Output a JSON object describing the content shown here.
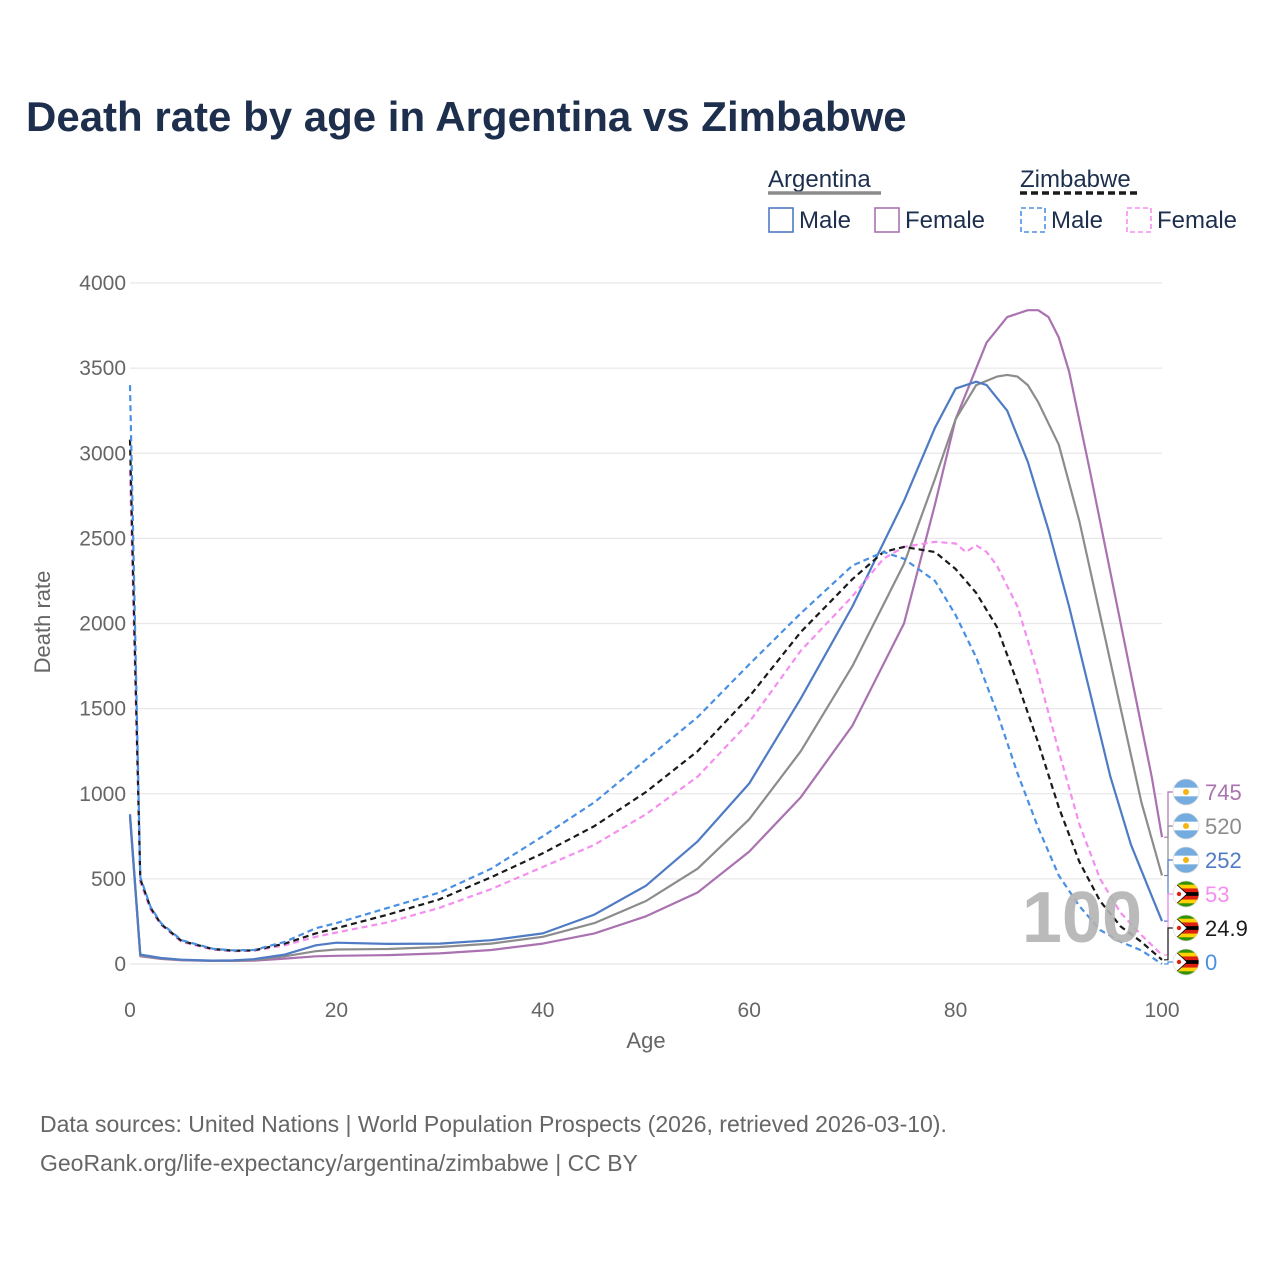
{
  "title": "Death rate by age in Argentina vs Zimbabwe",
  "legend": {
    "groups": [
      {
        "name": "Argentina",
        "entries": [
          {
            "label": "Male",
            "color": "#4f7bc4",
            "dash": false
          },
          {
            "label": "Female",
            "color": "#aa72b0",
            "dash": false
          }
        ],
        "line_color": "#8c8c8c",
        "dash": false
      },
      {
        "name": "Zimbabwe",
        "entries": [
          {
            "label": "Male",
            "color": "#4a90e2",
            "dash": true
          },
          {
            "label": "Female",
            "color": "#f48ff0",
            "dash": true
          }
        ],
        "line_color": "#1a1a1a",
        "dash": true
      }
    ]
  },
  "current_age_label": "100",
  "source_lines": [
    "Data sources: United Nations | World Population Prospects (2026, retrieved 2026-03-10).",
    "GeoRank.org/life-expectancy/argentina/zimbabwe | CC BY"
  ],
  "chart_data": {
    "type": "line",
    "xlabel": "Age",
    "ylabel": "Death rate",
    "xlim": [
      0,
      100
    ],
    "ylim": [
      0,
      4000
    ],
    "x_ticks": [
      0,
      20,
      40,
      60,
      80,
      100
    ],
    "y_ticks": [
      0,
      500,
      1000,
      1500,
      2000,
      2500,
      3000,
      3500,
      4000
    ],
    "grid": true,
    "series": [
      {
        "name": "Argentina Female",
        "color": "#aa72b0",
        "dash": false,
        "end_label": "745",
        "flag": "argentina",
        "points": [
          [
            0,
            860
          ],
          [
            1,
            45
          ],
          [
            3,
            30
          ],
          [
            5,
            22
          ],
          [
            8,
            18
          ],
          [
            10,
            18
          ],
          [
            12,
            20
          ],
          [
            15,
            32
          ],
          [
            18,
            45
          ],
          [
            20,
            48
          ],
          [
            25,
            52
          ],
          [
            30,
            62
          ],
          [
            35,
            82
          ],
          [
            40,
            120
          ],
          [
            45,
            180
          ],
          [
            50,
            280
          ],
          [
            55,
            420
          ],
          [
            60,
            660
          ],
          [
            65,
            980
          ],
          [
            70,
            1400
          ],
          [
            75,
            2000
          ],
          [
            78,
            2700
          ],
          [
            80,
            3200
          ],
          [
            83,
            3650
          ],
          [
            85,
            3800
          ],
          [
            87,
            3840
          ],
          [
            88,
            3840
          ],
          [
            89,
            3800
          ],
          [
            90,
            3680
          ],
          [
            91,
            3480
          ],
          [
            93,
            2900
          ],
          [
            95,
            2300
          ],
          [
            97,
            1700
          ],
          [
            99,
            1100
          ],
          [
            100,
            745
          ]
        ]
      },
      {
        "name": "Argentina total",
        "color": "#8c8c8c",
        "dash": false,
        "end_label": "520",
        "flag": "argentina",
        "points": [
          [
            0,
            870
          ],
          [
            1,
            50
          ],
          [
            3,
            32
          ],
          [
            5,
            24
          ],
          [
            8,
            19
          ],
          [
            10,
            20
          ],
          [
            12,
            24
          ],
          [
            15,
            45
          ],
          [
            18,
            75
          ],
          [
            20,
            85
          ],
          [
            25,
            88
          ],
          [
            30,
            100
          ],
          [
            35,
            120
          ],
          [
            40,
            160
          ],
          [
            45,
            240
          ],
          [
            50,
            370
          ],
          [
            55,
            560
          ],
          [
            60,
            850
          ],
          [
            65,
            1250
          ],
          [
            70,
            1750
          ],
          [
            75,
            2350
          ],
          [
            78,
            2850
          ],
          [
            80,
            3200
          ],
          [
            82,
            3400
          ],
          [
            84,
            3450
          ],
          [
            85,
            3460
          ],
          [
            86,
            3450
          ],
          [
            87,
            3400
          ],
          [
            88,
            3300
          ],
          [
            90,
            3050
          ],
          [
            92,
            2600
          ],
          [
            94,
            2050
          ],
          [
            96,
            1500
          ],
          [
            98,
            950
          ],
          [
            100,
            520
          ]
        ]
      },
      {
        "name": "Argentina Male",
        "color": "#4f7bc4",
        "dash": false,
        "end_label": "252",
        "flag": "argentina",
        "points": [
          [
            0,
            880
          ],
          [
            1,
            55
          ],
          [
            3,
            35
          ],
          [
            5,
            25
          ],
          [
            8,
            20
          ],
          [
            10,
            22
          ],
          [
            12,
            28
          ],
          [
            15,
            55
          ],
          [
            18,
            110
          ],
          [
            20,
            125
          ],
          [
            25,
            118
          ],
          [
            30,
            120
          ],
          [
            35,
            140
          ],
          [
            40,
            180
          ],
          [
            45,
            290
          ],
          [
            50,
            460
          ],
          [
            55,
            720
          ],
          [
            60,
            1060
          ],
          [
            65,
            1560
          ],
          [
            70,
            2100
          ],
          [
            75,
            2720
          ],
          [
            78,
            3150
          ],
          [
            80,
            3380
          ],
          [
            82,
            3420
          ],
          [
            83,
            3400
          ],
          [
            85,
            3250
          ],
          [
            87,
            2950
          ],
          [
            89,
            2550
          ],
          [
            91,
            2100
          ],
          [
            93,
            1600
          ],
          [
            95,
            1100
          ],
          [
            97,
            700
          ],
          [
            99,
            400
          ],
          [
            100,
            252
          ]
        ]
      },
      {
        "name": "Zimbabwe Female",
        "color": "#f48ff0",
        "dash": true,
        "end_label": "53",
        "flag": "zimbabwe",
        "points": [
          [
            0,
            2900
          ],
          [
            1,
            480
          ],
          [
            2,
            320
          ],
          [
            3,
            230
          ],
          [
            5,
            130
          ],
          [
            8,
            85
          ],
          [
            10,
            75
          ],
          [
            12,
            78
          ],
          [
            15,
            110
          ],
          [
            18,
            160
          ],
          [
            20,
            185
          ],
          [
            25,
            245
          ],
          [
            30,
            330
          ],
          [
            35,
            440
          ],
          [
            40,
            570
          ],
          [
            45,
            700
          ],
          [
            50,
            880
          ],
          [
            55,
            1100
          ],
          [
            60,
            1420
          ],
          [
            65,
            1840
          ],
          [
            70,
            2160
          ],
          [
            73,
            2380
          ],
          [
            75,
            2450
          ],
          [
            78,
            2480
          ],
          [
            80,
            2470
          ],
          [
            81,
            2420
          ],
          [
            82,
            2460
          ],
          [
            83,
            2420
          ],
          [
            84,
            2340
          ],
          [
            86,
            2100
          ],
          [
            88,
            1700
          ],
          [
            90,
            1250
          ],
          [
            92,
            820
          ],
          [
            94,
            500
          ],
          [
            96,
            300
          ],
          [
            98,
            170
          ],
          [
            100,
            53
          ]
        ]
      },
      {
        "name": "Zimbabwe total",
        "color": "#1a1a1a",
        "dash": true,
        "end_label": "24.9",
        "flag": "zimbabwe",
        "points": [
          [
            0,
            3080
          ],
          [
            1,
            500
          ],
          [
            2,
            330
          ],
          [
            3,
            235
          ],
          [
            5,
            135
          ],
          [
            8,
            88
          ],
          [
            10,
            78
          ],
          [
            12,
            80
          ],
          [
            15,
            120
          ],
          [
            18,
            180
          ],
          [
            20,
            210
          ],
          [
            25,
            290
          ],
          [
            30,
            380
          ],
          [
            35,
            510
          ],
          [
            40,
            650
          ],
          [
            45,
            810
          ],
          [
            50,
            1010
          ],
          [
            55,
            1250
          ],
          [
            60,
            1570
          ],
          [
            65,
            1950
          ],
          [
            70,
            2260
          ],
          [
            73,
            2420
          ],
          [
            75,
            2450
          ],
          [
            78,
            2420
          ],
          [
            80,
            2320
          ],
          [
            82,
            2180
          ],
          [
            84,
            1980
          ],
          [
            86,
            1650
          ],
          [
            88,
            1300
          ],
          [
            90,
            920
          ],
          [
            92,
            600
          ],
          [
            94,
            370
          ],
          [
            96,
            220
          ],
          [
            98,
            130
          ],
          [
            100,
            24.9
          ]
        ]
      },
      {
        "name": "Zimbabwe Male",
        "color": "#4a90e2",
        "dash": true,
        "end_label": "0",
        "flag": "zimbabwe",
        "points": [
          [
            0,
            3400
          ],
          [
            1,
            510
          ],
          [
            2,
            335
          ],
          [
            3,
            240
          ],
          [
            5,
            140
          ],
          [
            8,
            90
          ],
          [
            10,
            80
          ],
          [
            12,
            82
          ],
          [
            15,
            130
          ],
          [
            18,
            210
          ],
          [
            20,
            240
          ],
          [
            25,
            330
          ],
          [
            30,
            420
          ],
          [
            35,
            560
          ],
          [
            40,
            750
          ],
          [
            45,
            950
          ],
          [
            50,
            1200
          ],
          [
            55,
            1450
          ],
          [
            60,
            1760
          ],
          [
            65,
            2060
          ],
          [
            70,
            2340
          ],
          [
            73,
            2420
          ],
          [
            75,
            2380
          ],
          [
            78,
            2250
          ],
          [
            80,
            2050
          ],
          [
            82,
            1800
          ],
          [
            84,
            1480
          ],
          [
            86,
            1120
          ],
          [
            88,
            800
          ],
          [
            90,
            520
          ],
          [
            92,
            340
          ],
          [
            94,
            200
          ],
          [
            96,
            130
          ],
          [
            98,
            80
          ],
          [
            100,
            0
          ]
        ]
      }
    ]
  }
}
